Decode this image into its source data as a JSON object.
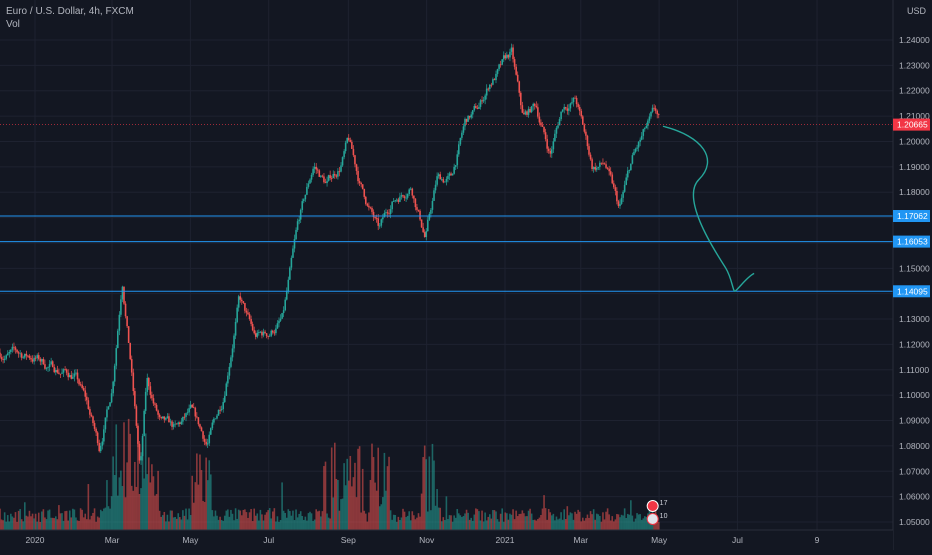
{
  "legend": {
    "symbol_title": "Euro / U.S. Dollar, 4h, FXCM",
    "volume_label": "Vol"
  },
  "chart_data": {
    "type": "candlestick",
    "title": "Euro / U.S. Dollar, 4h, FXCM",
    "currency_label": "USD",
    "y_axis": {
      "side": "right",
      "range": [
        1.046,
        1.25
      ],
      "ticks": [
        "1.24000",
        "1.23000",
        "1.22000",
        "1.21000",
        "1.20000",
        "1.19000",
        "1.18000",
        "1.17000",
        "1.16000",
        "1.15000",
        "1.14000",
        "1.13000",
        "1.12000",
        "1.11000",
        "1.10000",
        "1.09000",
        "1.08000",
        "1.07000",
        "1.06000",
        "1.05000"
      ]
    },
    "x_axis": {
      "ticks": [
        "2020",
        "Mar",
        "May",
        "Jul",
        "Sep",
        "Nov",
        "2021",
        "Mar",
        "May",
        "Jul",
        "9"
      ],
      "tick_dates": [
        "2020-01-01",
        "2020-03-01",
        "2020-05-01",
        "2020-07-01",
        "2020-09-01",
        "2020-11-01",
        "2021-01-01",
        "2021-03-01",
        "2021-05-01",
        "2021-07-01",
        "2021-09-01"
      ]
    },
    "grid": true,
    "last_price": {
      "label": "1.20665",
      "value": 1.20665,
      "color": "#f23645"
    },
    "horizontal_levels": [
      {
        "label": "1.17062",
        "value": 1.17062,
        "color": "#2196f3"
      },
      {
        "label": "1.16053",
        "value": 1.16053,
        "color": "#2196f3"
      },
      {
        "label": "1.14095",
        "value": 1.14095,
        "color": "#2196f3"
      }
    ],
    "price_path": [
      [
        "2020-01-01",
        1.115
      ],
      [
        "2020-01-10",
        1.112
      ],
      [
        "2020-01-20",
        1.11
      ],
      [
        "2020-02-01",
        1.108
      ],
      [
        "2020-02-10",
        1.097
      ],
      [
        "2020-02-20",
        1.079
      ],
      [
        "2020-03-01",
        1.103
      ],
      [
        "2020-03-09",
        1.148
      ],
      [
        "2020-03-15",
        1.117
      ],
      [
        "2020-03-23",
        1.07
      ],
      [
        "2020-03-28",
        1.105
      ],
      [
        "2020-04-08",
        1.088
      ],
      [
        "2020-04-20",
        1.085
      ],
      [
        "2020-05-01",
        1.092
      ],
      [
        "2020-05-14",
        1.08
      ],
      [
        "2020-05-26",
        1.098
      ],
      [
        "2020-06-08",
        1.139
      ],
      [
        "2020-06-20",
        1.122
      ],
      [
        "2020-07-01",
        1.124
      ],
      [
        "2020-07-12",
        1.13
      ],
      [
        "2020-07-24",
        1.166
      ],
      [
        "2020-08-05",
        1.19
      ],
      [
        "2020-08-15",
        1.183
      ],
      [
        "2020-08-25",
        1.19
      ],
      [
        "2020-09-01",
        1.2
      ],
      [
        "2020-09-10",
        1.183
      ],
      [
        "2020-09-25",
        1.164
      ],
      [
        "2020-10-05",
        1.176
      ],
      [
        "2020-10-20",
        1.184
      ],
      [
        "2020-10-31",
        1.163
      ],
      [
        "2020-11-09",
        1.185
      ],
      [
        "2020-11-20",
        1.185
      ],
      [
        "2020-12-01",
        1.207
      ],
      [
        "2020-12-12",
        1.213
      ],
      [
        "2020-12-20",
        1.223
      ],
      [
        "2021-01-06",
        1.234
      ],
      [
        "2021-01-15",
        1.208
      ],
      [
        "2021-01-25",
        1.214
      ],
      [
        "2021-02-05",
        1.195
      ],
      [
        "2021-02-15",
        1.214
      ],
      [
        "2021-02-25",
        1.217
      ],
      [
        "2021-03-10",
        1.19
      ],
      [
        "2021-03-20",
        1.191
      ],
      [
        "2021-03-31",
        1.172
      ],
      [
        "2021-04-10",
        1.192
      ],
      [
        "2021-04-20",
        1.203
      ],
      [
        "2021-04-28",
        1.21
      ],
      [
        "2021-05-01",
        1.2067
      ]
    ],
    "projection": {
      "color": "#26a69a",
      "points": [
        [
          "2021-05-04",
          1.206
        ],
        [
          "2021-06-01",
          1.185
        ],
        [
          "2021-06-22",
          1.15
        ],
        [
          "2021-06-29",
          1.141
        ],
        [
          "2021-07-14",
          1.148
        ]
      ]
    },
    "volume": {
      "label": "Vol",
      "spike_dates": [
        "2020-03-09",
        "2020-03-12",
        "2020-03-17",
        "2020-03-23",
        "2020-05-10",
        "2020-08-20",
        "2020-09-05",
        "2020-09-25",
        "2020-11-04"
      ]
    },
    "event_badges": [
      "17",
      "10"
    ],
    "colors": {
      "background": "#131722",
      "up": "#26a69a",
      "down": "#ef5350",
      "grid": "#1e2230",
      "axis_text": "#b2b5be"
    }
  }
}
